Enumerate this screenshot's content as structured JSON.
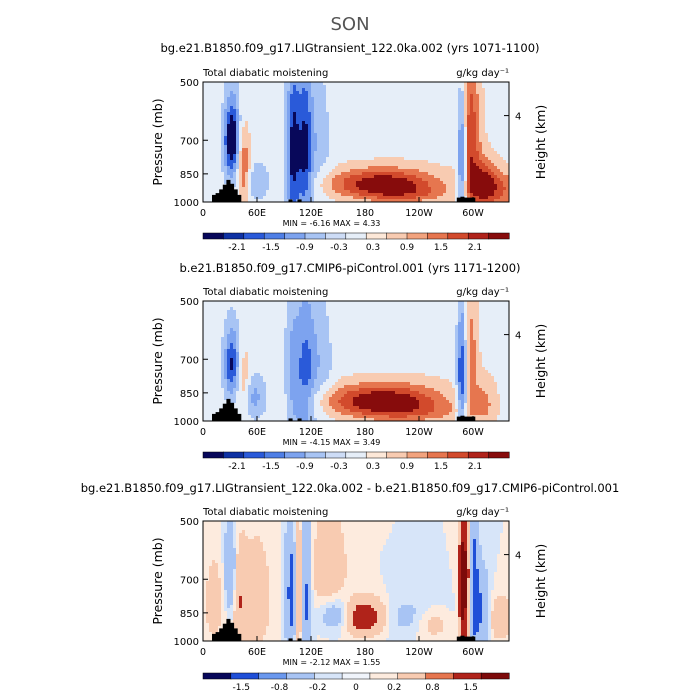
{
  "figure_title": "SON",
  "chart_data": [
    {
      "type": "heatmap",
      "title": "bg.e21.B1850.f09_g17.LIGtransient_122.0ka.002 (yrs 1071-1100)",
      "left_label": "Total diabatic moistening",
      "right_label": "g/kg day⁻¹",
      "ylabel": "Pressure (mb)",
      "y2label": "Height (km)",
      "y2ticks": [
        "4"
      ],
      "yticks": [
        "500",
        "700",
        "850",
        "1000"
      ],
      "xticks": [
        "0",
        "60E",
        "120E",
        "180",
        "120W",
        "60W"
      ],
      "stats": "MIN =   -6.16   MAX =    4.33",
      "colorbar_labels": [
        "-2.1",
        "-1.5",
        "-0.9",
        "-0.3",
        "0.3",
        "0.9",
        "1.5",
        "2.1"
      ],
      "blobs": [
        {
          "lon": 32,
          "p": 700,
          "sx": 6,
          "sp": 110,
          "v": -3.0
        },
        {
          "lon": 45,
          "p": 820,
          "sx": 5,
          "sp": 120,
          "v": 1.6
        },
        {
          "lon": 60,
          "p": 890,
          "sx": 10,
          "sp": 70,
          "v": -0.8
        },
        {
          "lon": 100,
          "p": 760,
          "sx": 5,
          "sp": 240,
          "v": -2.4
        },
        {
          "lon": 113,
          "p": 760,
          "sx": 6,
          "sp": 240,
          "v": -2.2
        },
        {
          "lon": 128,
          "p": 700,
          "sx": 10,
          "sp": 200,
          "v": -0.7
        },
        {
          "lon": 200,
          "p": 900,
          "sx": 42,
          "sp": 55,
          "v": 2.6
        },
        {
          "lon": 230,
          "p": 960,
          "sx": 35,
          "sp": 35,
          "v": 0.8
        },
        {
          "lon": 288,
          "p": 770,
          "sx": 4,
          "sp": 200,
          "v": -2.8
        },
        {
          "lon": 296,
          "p": 700,
          "sx": 8,
          "sp": 220,
          "v": 2.0
        },
        {
          "lon": 312,
          "p": 900,
          "sx": 10,
          "sp": 90,
          "v": 1.8
        },
        {
          "lon": 330,
          "p": 930,
          "sx": 18,
          "sp": 70,
          "v": 1.4
        },
        {
          "lon": 250,
          "p": 640,
          "sx": 80,
          "sp": 200,
          "v": 0.15
        }
      ]
    },
    {
      "type": "heatmap",
      "title": "b.e21.B1850.f09_g17.CMIP6-piControl.001 (yrs 1171-1200)",
      "left_label": "Total diabatic moistening",
      "right_label": "g/kg day⁻¹",
      "ylabel": "Pressure (mb)",
      "y2label": "Height (km)",
      "y2ticks": [
        "4"
      ],
      "yticks": [
        "500",
        "700",
        "850",
        "1000"
      ],
      "xticks": [
        "0",
        "60E",
        "120E",
        "180",
        "120W",
        "60W"
      ],
      "stats": "MIN =   -4.15   MAX =    3.49",
      "colorbar_labels": [
        "-2.1",
        "-1.5",
        "-0.9",
        "-0.3",
        "0.3",
        "0.9",
        "1.5",
        "2.1"
      ],
      "blobs": [
        {
          "lon": 32,
          "p": 720,
          "sx": 6,
          "sp": 100,
          "v": -2.2
        },
        {
          "lon": 45,
          "p": 820,
          "sx": 6,
          "sp": 110,
          "v": 1.1
        },
        {
          "lon": 55,
          "p": 870,
          "sx": 10,
          "sp": 80,
          "v": -1.2
        },
        {
          "lon": 100,
          "p": 780,
          "sx": 6,
          "sp": 220,
          "v": -1.2
        },
        {
          "lon": 114,
          "p": 760,
          "sx": 7,
          "sp": 240,
          "v": -1.5
        },
        {
          "lon": 130,
          "p": 720,
          "sx": 10,
          "sp": 180,
          "v": -0.8
        },
        {
          "lon": 200,
          "p": 890,
          "sx": 45,
          "sp": 60,
          "v": 2.7
        },
        {
          "lon": 240,
          "p": 960,
          "sx": 40,
          "sp": 40,
          "v": 0.7
        },
        {
          "lon": 288,
          "p": 760,
          "sx": 4,
          "sp": 200,
          "v": -2.6
        },
        {
          "lon": 296,
          "p": 690,
          "sx": 6,
          "sp": 160,
          "v": 1.3
        },
        {
          "lon": 312,
          "p": 900,
          "sx": 10,
          "sp": 90,
          "v": 0.9
        },
        {
          "lon": 250,
          "p": 640,
          "sx": 80,
          "sp": 200,
          "v": 0.15
        }
      ]
    },
    {
      "type": "heatmap",
      "title": "bg.e21.B1850.f09_g17.LIGtransient_122.0ka.002 - b.e21.B1850.f09_g17.CMIP6-piControl.001",
      "left_label": "Total diabatic moistening",
      "right_label": "g/kg day⁻¹",
      "ylabel": "Pressure (mb)",
      "y2label": "Height (km)",
      "y2ticks": [
        "4"
      ],
      "yticks": [
        "500",
        "700",
        "850",
        "1000"
      ],
      "xticks": [
        "0",
        "60E",
        "120E",
        "180",
        "120W",
        "60W"
      ],
      "stats": "MIN =   -2.12   MAX =    1.55",
      "colorbar_labels": [
        "-1.5",
        "-0.8",
        "-0.2",
        "0",
        "0.2",
        "0.8",
        "1.5"
      ],
      "blobs": [
        {
          "lon": 12,
          "p": 800,
          "sx": 8,
          "sp": 160,
          "v": 0.35
        },
        {
          "lon": 30,
          "p": 660,
          "sx": 4,
          "sp": 110,
          "v": -0.9
        },
        {
          "lon": 42,
          "p": 800,
          "sx": 5,
          "sp": 150,
          "v": 0.7
        },
        {
          "lon": 60,
          "p": 780,
          "sx": 12,
          "sp": 200,
          "v": 0.4
        },
        {
          "lon": 98,
          "p": 760,
          "sx": 4,
          "sp": 250,
          "v": -1.1
        },
        {
          "lon": 106,
          "p": 760,
          "sx": 4,
          "sp": 250,
          "v": 0.8
        },
        {
          "lon": 114,
          "p": 760,
          "sx": 4,
          "sp": 250,
          "v": -1.0
        },
        {
          "lon": 140,
          "p": 660,
          "sx": 14,
          "sp": 150,
          "v": 0.5
        },
        {
          "lon": 150,
          "p": 860,
          "sx": 14,
          "sp": 60,
          "v": -0.8
        },
        {
          "lon": 178,
          "p": 870,
          "sx": 16,
          "sp": 60,
          "v": 1.6
        },
        {
          "lon": 230,
          "p": 870,
          "sx": 30,
          "sp": 70,
          "v": -0.35
        },
        {
          "lon": 255,
          "p": 900,
          "sx": 14,
          "sp": 60,
          "v": 0.5
        },
        {
          "lon": 288,
          "p": 740,
          "sx": 3,
          "sp": 220,
          "v": 1.2
        },
        {
          "lon": 294,
          "p": 700,
          "sx": 5,
          "sp": 230,
          "v": 1.5
        },
        {
          "lon": 300,
          "p": 720,
          "sx": 4,
          "sp": 240,
          "v": -1.6
        },
        {
          "lon": 310,
          "p": 840,
          "sx": 6,
          "sp": 120,
          "v": -0.9
        },
        {
          "lon": 330,
          "p": 880,
          "sx": 12,
          "sp": 80,
          "v": 0.5
        }
      ]
    }
  ]
}
